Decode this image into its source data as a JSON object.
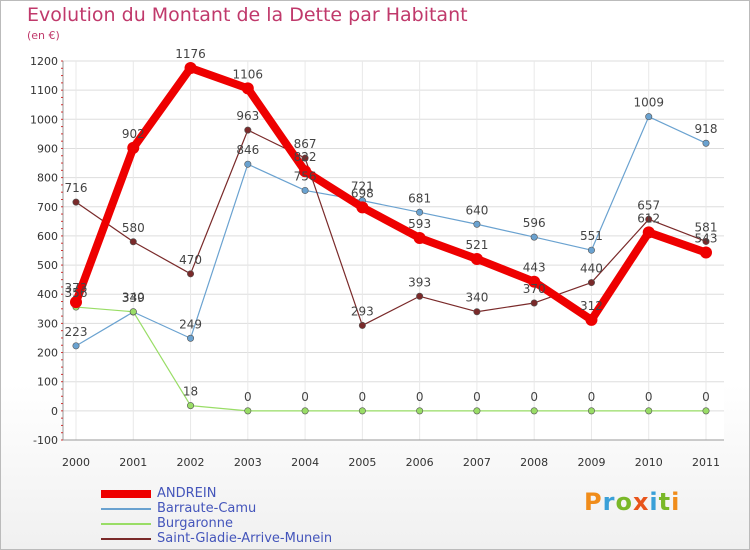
{
  "chart_data": {
    "type": "line",
    "title": "Evolution du Montant de la Dette par Habitant",
    "unit_label": "(en €)",
    "x": [
      "2000",
      "2001",
      "2002",
      "2003",
      "2004",
      "2005",
      "2006",
      "2007",
      "2008",
      "2009",
      "2010",
      "2011"
    ],
    "ylim": [
      -100,
      1200
    ],
    "yticks": [
      "-100",
      "0",
      "100",
      "200",
      "300",
      "400",
      "500",
      "600",
      "700",
      "800",
      "900",
      "1000",
      "1100",
      "1200"
    ],
    "grid": true,
    "legend_position": "bottom-left",
    "series": [
      {
        "name": "ANDREIN",
        "color": "#ee0000",
        "values": [
          373,
          902,
          1176,
          1106,
          822,
          698,
          593,
          521,
          443,
          312,
          612,
          543
        ],
        "labels": [
          "373",
          "902",
          "1176",
          "1106",
          "822",
          "698",
          "593",
          "521",
          "443",
          "312",
          "612",
          "543"
        ]
      },
      {
        "name": "Barraute-Camu",
        "color": "#6aa2d0",
        "values": [
          223,
          339,
          249,
          846,
          756,
          721,
          681,
          640,
          596,
          551,
          1009,
          918
        ],
        "labels": [
          "223",
          "339",
          "249",
          "846",
          "756",
          "721",
          "681",
          "640",
          "596",
          "551",
          "1009",
          "918"
        ]
      },
      {
        "name": "Burgaronne",
        "color": "#99dd66",
        "values": [
          356,
          340,
          18,
          0,
          0,
          0,
          0,
          0,
          0,
          0,
          0,
          0
        ],
        "labels": [
          "356",
          "340",
          "18",
          "0",
          "0",
          "0",
          "0",
          "0",
          "0",
          "0",
          "0",
          "0"
        ]
      },
      {
        "name": "Saint-Gladie-Arrive-Munein",
        "color": "#7a2a2a",
        "values": [
          716,
          580,
          470,
          963,
          867,
          293,
          393,
          340,
          370,
          440,
          657,
          581
        ],
        "labels": [
          "716",
          "580",
          "470",
          "963",
          "867",
          "293",
          "393",
          "340",
          "370",
          "440",
          "657",
          "581"
        ]
      }
    ]
  },
  "legend": [
    {
      "label": "ANDREIN",
      "color": "#ee0000"
    },
    {
      "label": "Barraute-Camu",
      "color": "#6aa2d0"
    },
    {
      "label": "Burgaronne",
      "color": "#99dd66"
    },
    {
      "label": "Saint-Gladie-Arrive-Munein",
      "color": "#7a2a2a"
    }
  ],
  "brand": {
    "text": "Proxiti",
    "colors": [
      "#f08c1a",
      "#3aa0d8",
      "#7ab829",
      "#e8541b",
      "#3aa0d8",
      "#7ab829",
      "#f08c1a"
    ]
  }
}
